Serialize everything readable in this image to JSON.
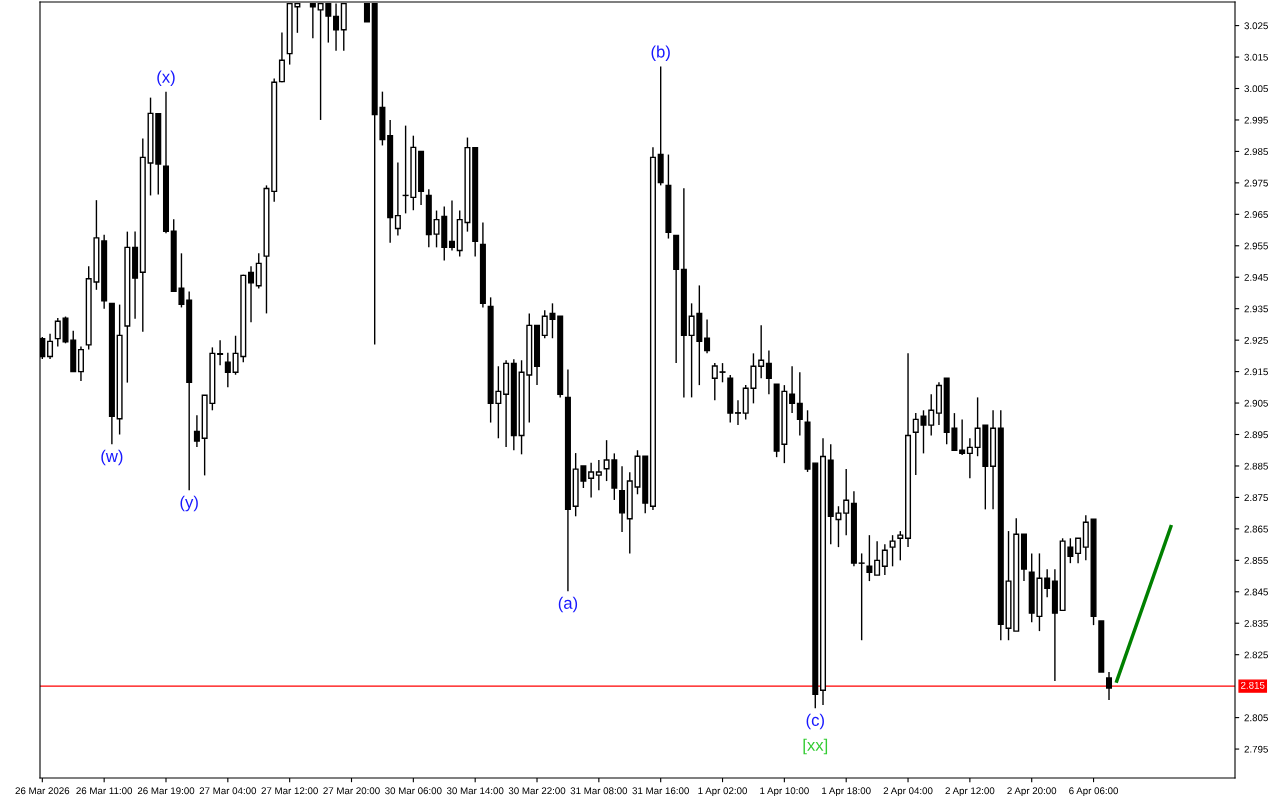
{
  "chart_data": {
    "type": "candlestick",
    "categories": [
      "26 Mar 2026",
      null,
      null,
      null,
      null,
      null,
      null,
      null,
      "26 Mar 11:00",
      null,
      null,
      null,
      null,
      null,
      null,
      null,
      "26 Mar 19:00",
      null,
      null,
      null,
      null,
      null,
      null,
      null,
      "27 Mar 04:00",
      null,
      null,
      null,
      null,
      null,
      null,
      null,
      "27 Mar 12:00",
      null,
      null,
      null,
      null,
      null,
      null,
      null,
      "27 Mar 20:00",
      null,
      null,
      null,
      null,
      null,
      null,
      null,
      "30 Mar 06:00",
      null,
      null,
      null,
      null,
      null,
      null,
      null,
      "30 Mar 14:00",
      null,
      null,
      null,
      null,
      null,
      null,
      null,
      "30 Mar 22:00",
      null,
      null,
      null,
      null,
      null,
      null,
      null,
      "31 Mar 08:00",
      null,
      null,
      null,
      null,
      null,
      null,
      null,
      "31 Mar 16:00",
      null,
      null,
      null,
      null,
      null,
      null,
      null,
      "1 Apr 02:00",
      null,
      null,
      null,
      null,
      null,
      null,
      null,
      "1 Apr 10:00",
      null,
      null,
      null,
      null,
      null,
      null,
      null,
      "1 Apr 18:00",
      null,
      null,
      null,
      null,
      null,
      null,
      null,
      "2 Apr 04:00",
      null,
      null,
      null,
      null,
      null,
      null,
      null,
      "2 Apr 12:00",
      null,
      null,
      null,
      null,
      null,
      null,
      null,
      "2 Apr 20:00",
      null,
      null,
      null,
      null,
      null,
      null,
      null,
      "6 Apr 06:00",
      null,
      null,
      null,
      null,
      null,
      null,
      null,
      null,
      null,
      null,
      null,
      null,
      null,
      null,
      null,
      null,
      null,
      null
    ],
    "ohlc": [
      [
        2.9255,
        2.926,
        2.919,
        2.9198
      ],
      [
        2.9198,
        2.927,
        2.919,
        2.9246
      ],
      [
        2.9255,
        2.932,
        2.923,
        2.931
      ],
      [
        2.932,
        2.9325,
        2.924,
        2.9245
      ],
      [
        2.925,
        2.928,
        2.915,
        2.915
      ],
      [
        2.915,
        2.923,
        2.912,
        2.922
      ],
      [
        2.9235,
        2.9485,
        2.922,
        2.9445
      ],
      [
        2.9435,
        2.9695,
        2.941,
        2.9575
      ],
      [
        2.9565,
        2.9585,
        2.935,
        2.9375
      ],
      [
        2.9367,
        2.9367,
        2.8919,
        2.9008
      ],
      [
        2.9,
        2.9363,
        2.895,
        2.9265
      ],
      [
        2.9295,
        2.9595,
        2.9115,
        2.9545
      ],
      [
        2.9545,
        2.9595,
        2.9318,
        2.9447
      ],
      [
        2.9466,
        2.9891,
        2.9277,
        2.9831
      ],
      [
        2.9813,
        3.0021,
        2.971,
        2.9971
      ],
      [
        2.997,
        2.997,
        2.9713,
        2.981
      ],
      [
        2.9803,
        3.004,
        2.959,
        2.9596
      ],
      [
        2.9596,
        2.9634,
        2.9405,
        2.9405
      ],
      [
        2.9415,
        2.9526,
        2.9354,
        2.9364
      ],
      [
        2.9377,
        2.9405,
        2.8773,
        2.9116
      ],
      [
        2.896,
        2.9011,
        2.891,
        2.8929
      ],
      [
        2.8938,
        2.9075,
        2.882,
        2.9075
      ],
      [
        2.9049,
        2.9227,
        2.9027,
        2.9208
      ],
      [
        2.9205,
        2.925,
        2.917,
        2.9207
      ],
      [
        2.918,
        2.921,
        2.91,
        2.9148
      ],
      [
        2.9148,
        2.9264,
        2.914,
        2.9208
      ],
      [
        2.9198,
        2.9458,
        2.918,
        2.9456
      ],
      [
        2.9465,
        2.9485,
        2.9307,
        2.9432
      ],
      [
        2.9423,
        2.9526,
        2.9414,
        2.9494
      ],
      [
        2.9517,
        2.9742,
        2.9335,
        2.9732
      ],
      [
        2.9723,
        3.0082,
        2.969,
        3.007
      ],
      [
        3.0072,
        3.0228,
        3.007,
        3.014
      ],
      [
        3.0161,
        3.032,
        3.0126,
        3.032
      ],
      [
        3.031,
        3.032,
        3.0227,
        3.032
      ],
      null,
      [
        3.032,
        3.032,
        3.021,
        3.031
      ],
      [
        3.03,
        3.032,
        2.995,
        3.032
      ],
      [
        3.032,
        3.032,
        3.0196,
        3.028
      ],
      [
        3.0279,
        3.032,
        3.017,
        3.0237
      ],
      [
        3.0237,
        3.032,
        3.017,
        3.032
      ],
      null,
      null,
      [
        3.032,
        3.032,
        3.0262,
        3.0262
      ],
      [
        3.032,
        3.032,
        2.9236,
        2.9967
      ],
      [
        2.999,
        3.004,
        2.9869,
        2.9888
      ],
      [
        2.99,
        2.995,
        2.956,
        2.964
      ],
      [
        2.9605,
        2.9815,
        2.9583,
        2.9646
      ],
      [
        2.971,
        2.9932,
        2.9653,
        2.971
      ],
      [
        2.9704,
        2.99,
        2.9663,
        2.9863
      ],
      [
        2.985,
        2.985,
        2.968,
        2.9723
      ],
      [
        2.971,
        2.973,
        2.9545,
        2.9586
      ],
      [
        2.9587,
        2.9662,
        2.9545,
        2.9633
      ],
      [
        2.9643,
        2.9675,
        2.9503,
        2.9545
      ],
      [
        2.9564,
        2.9694,
        2.9535,
        2.9545
      ],
      [
        2.9535,
        2.9662,
        2.9516,
        2.9633
      ],
      [
        2.9624,
        2.9894,
        2.9595,
        2.9862
      ],
      [
        2.9862,
        2.9862,
        2.9516,
        2.9564
      ],
      [
        2.9554,
        2.9624,
        2.9354,
        2.9367
      ],
      [
        2.9357,
        2.9386,
        2.8988,
        2.9049
      ],
      [
        2.9049,
        2.9167,
        2.8938,
        2.9087
      ],
      [
        2.9078,
        2.9186,
        2.891,
        2.9176
      ],
      [
        2.9176,
        2.9189,
        2.89,
        2.8947
      ],
      [
        2.8947,
        2.9186,
        2.8887,
        2.9148
      ],
      [
        2.9139,
        2.9335,
        2.8988,
        2.9297
      ],
      [
        2.9297,
        2.9297,
        2.9107,
        2.9167
      ],
      [
        2.9265,
        2.9345,
        2.9256,
        2.9326
      ],
      [
        2.9335,
        2.9367,
        2.9256,
        2.9316
      ],
      [
        2.9326,
        2.9326,
        2.9068,
        2.9078
      ],
      [
        2.9068,
        2.9157,
        2.8452,
        2.8712
      ],
      [
        2.8722,
        2.8891,
        2.869,
        2.884
      ],
      [
        2.885,
        2.885,
        2.878,
        2.8802
      ],
      [
        2.8811,
        2.886,
        2.875,
        2.8831
      ],
      [
        2.8821,
        2.8869,
        2.8773,
        2.8831
      ],
      [
        2.8841,
        2.8932,
        2.8802,
        2.8869
      ],
      [
        2.8869,
        2.889,
        2.8742,
        2.878
      ],
      [
        2.8771,
        2.8849,
        2.864,
        2.8701
      ],
      [
        2.8682,
        2.883,
        2.8572,
        2.8802
      ],
      [
        2.8783,
        2.89,
        2.876,
        2.8881
      ],
      [
        2.8881,
        2.8881,
        2.87,
        2.8732
      ],
      [
        2.8722,
        2.9863,
        2.871,
        2.9831
      ],
      [
        2.984,
        3.012,
        2.9742,
        2.9751
      ],
      [
        2.9742,
        2.984,
        2.9573,
        2.9593
      ],
      [
        2.9583,
        2.9583,
        2.9177,
        2.9475
      ],
      [
        2.9475,
        2.9733,
        2.9068,
        2.9265
      ],
      [
        2.9265,
        2.9367,
        2.9068,
        2.9326
      ],
      [
        2.9335,
        2.9424,
        2.9107,
        2.9246
      ],
      [
        2.9256,
        2.9316,
        2.9208,
        2.9217
      ],
      [
        2.9129,
        2.9177,
        2.9059,
        2.9168
      ],
      [
        2.9148,
        2.9177,
        2.9116,
        2.9149
      ],
      [
        2.9129,
        2.9139,
        2.8988,
        2.9018
      ],
      [
        2.9019,
        2.9059,
        2.898,
        2.9018
      ],
      [
        2.9018,
        2.9107,
        2.8998,
        2.9097
      ],
      [
        2.9097,
        2.9208,
        2.9049,
        2.9167
      ],
      [
        2.9167,
        2.9297,
        2.9129,
        2.9186
      ],
      [
        2.9176,
        2.9217,
        2.9078,
        2.9129
      ],
      [
        2.911,
        2.911,
        2.8878,
        2.8897
      ],
      [
        2.8919,
        2.9107,
        2.8859,
        2.9087
      ],
      [
        2.9078,
        2.9167,
        2.9018,
        2.9049
      ],
      [
        2.9049,
        2.9148,
        2.8947,
        2.8998
      ],
      [
        2.8989,
        2.9027,
        2.8831,
        2.884
      ],
      [
        2.8859,
        2.8859,
        2.808,
        2.8124
      ],
      [
        2.8137,
        2.8938,
        2.809,
        2.888
      ],
      [
        2.8868,
        2.8919,
        2.8601,
        2.869
      ],
      [
        2.868,
        2.8722,
        2.8592,
        2.87
      ],
      [
        2.87,
        2.884,
        2.863,
        2.8741
      ],
      [
        2.8731,
        2.877,
        2.8531,
        2.8541
      ],
      [
        2.8541,
        2.8572,
        2.8296,
        2.8541
      ],
      [
        2.8531,
        2.863,
        2.8484,
        2.8512
      ],
      [
        2.8503,
        2.8611,
        2.8503,
        2.855
      ],
      [
        2.8531,
        2.8601,
        2.8503,
        2.8582
      ],
      [
        2.8592,
        2.863,
        2.8531,
        2.8611
      ],
      [
        2.862,
        2.8643,
        2.855,
        2.863
      ],
      [
        2.862,
        2.9208,
        2.8592,
        2.8947
      ],
      [
        2.8957,
        2.9018,
        2.8821,
        2.8998
      ],
      [
        2.9008,
        2.9027,
        2.889,
        2.898
      ],
      [
        2.898,
        2.9078,
        2.8947,
        2.9027
      ],
      [
        2.9018,
        2.9116,
        2.898,
        2.9106
      ],
      [
        2.9129,
        2.9129,
        2.8919,
        2.8957
      ],
      [
        2.897,
        2.9018,
        2.89,
        2.89
      ],
      [
        2.89,
        2.8998,
        2.8885,
        2.889
      ],
      [
        2.889,
        2.8938,
        2.8811,
        2.8909
      ],
      [
        2.8909,
        2.9068,
        2.8881,
        2.897
      ],
      [
        2.898,
        2.898,
        2.8712,
        2.8849
      ],
      [
        2.8849,
        2.9027,
        2.8712,
        2.897
      ],
      [
        2.897,
        2.9027,
        2.8296,
        2.8347
      ],
      [
        2.8334,
        2.8643,
        2.8296,
        2.8484
      ],
      [
        2.8325,
        2.8684,
        2.8325,
        2.8633
      ],
      [
        2.8633,
        2.8633,
        2.8484,
        2.8522
      ],
      [
        2.8512,
        2.8572,
        2.8353,
        2.8382
      ],
      [
        2.8372,
        2.8572,
        2.8325,
        2.8493
      ],
      [
        2.8493,
        2.8522,
        2.8433,
        2.8461
      ],
      [
        2.8484,
        2.8522,
        2.8166,
        2.8382
      ],
      [
        2.8391,
        2.862,
        2.8391,
        2.8611
      ],
      [
        2.8592,
        2.862,
        2.8541,
        2.8563
      ],
      [
        2.8572,
        2.862,
        2.8541,
        2.862
      ],
      [
        2.8592,
        2.8693,
        2.855,
        2.8671
      ],
      [
        2.8681,
        2.8681,
        2.8344,
        2.8372
      ],
      [
        2.8357,
        2.8357,
        2.8195,
        2.8195
      ],
      [
        2.8176,
        2.8195,
        2.8106,
        2.8144
      ],
      null,
      null,
      null,
      null,
      null,
      null,
      null,
      null,
      null,
      null,
      null,
      null,
      null,
      null,
      null,
      null
    ],
    "series": [
      {
        "type": "line",
        "color": "#008000",
        "values": [
          null,
          null,
          null,
          null,
          null,
          null,
          null,
          null,
          null,
          null,
          null,
          null,
          null,
          null,
          null,
          null,
          null,
          null,
          null,
          null,
          null,
          null,
          null,
          null,
          null,
          null,
          null,
          null,
          null,
          null,
          null,
          null,
          null,
          null,
          null,
          null,
          null,
          null,
          null,
          null,
          null,
          null,
          null,
          null,
          null,
          null,
          null,
          null,
          null,
          null,
          null,
          null,
          null,
          null,
          null,
          null,
          null,
          null,
          null,
          null,
          null,
          null,
          null,
          null,
          null,
          null,
          null,
          null,
          null,
          null,
          null,
          null,
          null,
          null,
          null,
          null,
          null,
          null,
          null,
          null,
          null,
          null,
          null,
          null,
          null,
          null,
          null,
          null,
          null,
          null,
          null,
          null,
          null,
          null,
          null,
          null,
          null,
          null,
          null,
          null,
          null,
          null,
          null,
          null,
          null,
          null,
          null,
          null,
          null,
          null,
          null,
          null,
          null,
          null,
          null,
          null,
          null,
          null,
          null,
          null,
          null,
          null,
          null,
          null,
          null,
          null,
          null,
          null,
          null,
          null,
          null,
          null,
          null,
          null,
          null,
          null,
          null,
          null,
          null,
          2.8166,
          null,
          null,
          null,
          null,
          null,
          null,
          2.8657,
          null,
          null,
          null,
          null,
          null,
          null,
          null,
          null
        ]
      }
    ],
    "ylim": [
      2.7858,
      3.0325
    ],
    "yticks": [
      {
        "value": 3.025,
        "label": "3.025"
      },
      {
        "value": 3.015,
        "label": "3.015"
      },
      {
        "value": 3.005,
        "label": "3.005"
      },
      {
        "value": 2.995,
        "label": "2.995"
      },
      {
        "value": 2.985,
        "label": "2.985"
      },
      {
        "value": 2.975,
        "label": "2.975"
      },
      {
        "value": 2.965,
        "label": "2.965"
      },
      {
        "value": 2.955,
        "label": "2.955"
      },
      {
        "value": 2.945,
        "label": "2.945"
      },
      {
        "value": 2.935,
        "label": "2.935"
      },
      {
        "value": 2.925,
        "label": "2.925"
      },
      {
        "value": 2.915,
        "label": "2.915"
      },
      {
        "value": 2.905,
        "label": "2.905"
      },
      {
        "value": 2.895,
        "label": "2.895"
      },
      {
        "value": 2.885,
        "label": "2.885"
      },
      {
        "value": 2.875,
        "label": "2.875"
      },
      {
        "value": 2.865,
        "label": "2.865"
      },
      {
        "value": 2.855,
        "label": "2.855"
      },
      {
        "value": 2.845,
        "label": "2.845"
      },
      {
        "value": 2.835,
        "label": "2.835"
      },
      {
        "value": 2.825,
        "label": "2.825"
      },
      {
        "value": 2.805,
        "label": "2.805"
      },
      {
        "value": 2.795,
        "label": "2.795"
      }
    ],
    "ref_lines": [
      {
        "axis": "y",
        "value": 2.815,
        "label": "2.815",
        "color": "#ff0000"
      }
    ],
    "annotations": [
      {
        "text": "(w)",
        "y": 2.8919
      },
      {
        "text": "(x)",
        "y": 3.004
      },
      {
        "text": "(y)",
        "y": 2.8773
      },
      {
        "text": "(a)",
        "y": 2.8452
      },
      {
        "text": "(b)",
        "y": 3.012
      },
      {
        "text": "(c)",
        "y": 2.808
      },
      {
        "text": "[xx]",
        "y": 2.808
      }
    ],
    "grid": false
  }
}
